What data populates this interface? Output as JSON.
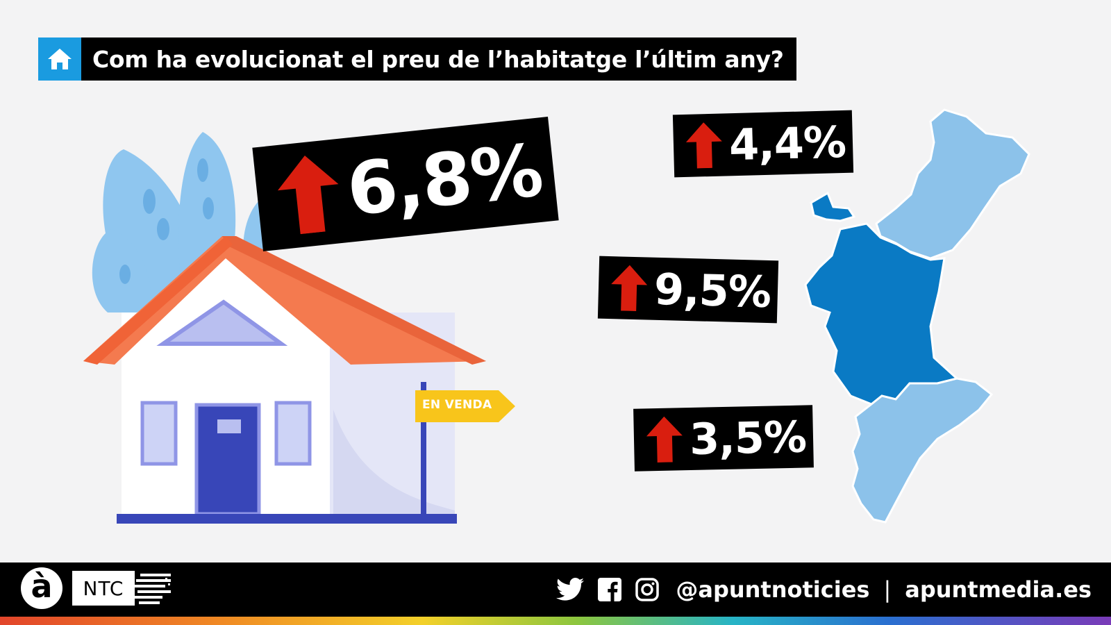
{
  "title": {
    "icon": "house-icon",
    "text": "Com ha evolucionat el preu de l’habitatge l’últim any?"
  },
  "house": {
    "sign_text": "EN VENDA"
  },
  "badges": {
    "main": {
      "value": "6,8%",
      "direction": "up"
    },
    "castello": {
      "value": "4,4%",
      "direction": "up"
    },
    "valencia": {
      "value": "9,5%",
      "direction": "up"
    },
    "alacant": {
      "value": "3,5%",
      "direction": "up"
    }
  },
  "map": {
    "icon": "valencian-community-map",
    "colors": {
      "light": "#8cc2ea",
      "dark": "#0a7ac4"
    }
  },
  "footer": {
    "logo_letter": "à",
    "logo_ntc": "NTC",
    "social_icons": [
      "twitter-icon",
      "facebook-icon",
      "instagram-icon"
    ],
    "handle": "@apuntnoticies",
    "separator": "|",
    "website": "apuntmedia.es"
  },
  "colors": {
    "accent_blue": "#1a9be0",
    "arrow_red": "#d91e0f",
    "roof": "#f47a4f",
    "sign_yellow": "#f8c51b"
  }
}
